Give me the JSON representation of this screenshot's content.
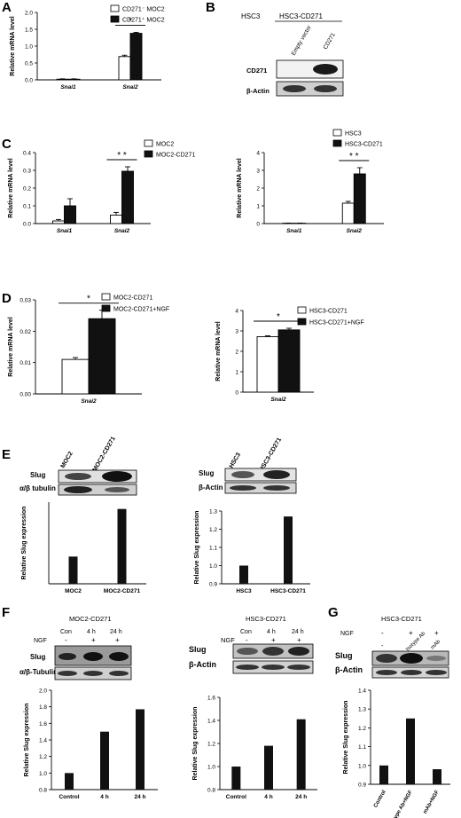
{
  "panels": {
    "A": {
      "letter": "A",
      "chart_data": {
        "type": "bar",
        "ylabel": "Relative mRNA level",
        "ylim": [
          0,
          2.0
        ],
        "yticks": [
          0,
          0.5,
          1.0,
          1.5,
          2.0
        ],
        "categories": [
          "Snai1",
          "Snai2"
        ],
        "series": [
          {
            "name": "CD271⁻ MOC2",
            "color": "#ffffff",
            "values": [
              0.02,
              0.69
            ]
          },
          {
            "name": "CD271⁺ MOC2",
            "color": "#111111",
            "values": [
              0.02,
              1.38
            ]
          }
        ],
        "errors": [
          [
            0.01,
            0.04
          ],
          [
            0.01,
            0.03
          ]
        ],
        "significance": "*"
      }
    },
    "B": {
      "letter": "B",
      "cell_lines": [
        "HSC3",
        "HSC3-CD271"
      ],
      "lanes": [
        "Empty vector",
        "CD271"
      ],
      "rows": [
        "CD271",
        "β-Actin"
      ]
    },
    "C1": {
      "letter": "C",
      "chart_data": {
        "type": "bar",
        "ylabel": "Relative mRNA level",
        "ylim": [
          0,
          0.4
        ],
        "yticks": [
          0.0,
          0.1,
          0.2,
          0.3,
          0.4
        ],
        "categories": [
          "Snai1",
          "Snai2"
        ],
        "series": [
          {
            "name": "MOC2",
            "color": "#ffffff",
            "values": [
              0.015,
              0.048
            ]
          },
          {
            "name": "MOC2-CD271",
            "color": "#111111",
            "values": [
              0.1,
              0.295
            ]
          }
        ],
        "errors": [
          [
            0.008,
            0.015
          ],
          [
            0.04,
            0.025
          ]
        ],
        "significance": "* *"
      }
    },
    "C2": {
      "chart_data": {
        "type": "bar",
        "ylabel": "Relative mRNA level",
        "ylim": [
          0,
          4
        ],
        "yticks": [
          0,
          1,
          2,
          3,
          4
        ],
        "categories": [
          "Snai1",
          "Snai2"
        ],
        "series": [
          {
            "name": "HSC3",
            "color": "#ffffff",
            "values": [
              0.02,
              1.15
            ]
          },
          {
            "name": "HSC3-CD271",
            "color": "#111111",
            "values": [
              0.02,
              2.8
            ]
          }
        ],
        "errors": [
          [
            0.01,
            0.1
          ],
          [
            0.01,
            0.35
          ]
        ],
        "significance": "* *"
      }
    },
    "D1": {
      "letter": "D",
      "chart_data": {
        "type": "bar",
        "ylabel": "Relative mRNA level",
        "ylim": [
          0,
          0.03
        ],
        "yticks": [
          0.0,
          0.01,
          0.02,
          0.03
        ],
        "categories": [
          "Snai2"
        ],
        "series": [
          {
            "name": "MOC2-CD271",
            "color": "#ffffff",
            "values": [
              0.011
            ]
          },
          {
            "name": "MOC2-CD271+NGF",
            "color": "#111111",
            "values": [
              0.024
            ]
          }
        ],
        "errors": [
          [
            0.0006
          ],
          [
            0.0027
          ]
        ],
        "significance": "*"
      }
    },
    "D2": {
      "chart_data": {
        "type": "bar",
        "ylabel": "Relative mRNA level",
        "ylim": [
          0,
          4
        ],
        "yticks": [
          0,
          1,
          2,
          3,
          4
        ],
        "categories": [
          "Snai2"
        ],
        "series": [
          {
            "name": "HSC3-CD271",
            "color": "#ffffff",
            "values": [
              2.72
            ]
          },
          {
            "name": "HSC3-CD271+NGF",
            "color": "#111111",
            "values": [
              3.05
            ]
          }
        ],
        "errors": [
          [
            0.04
          ],
          [
            0.08
          ]
        ],
        "significance": "*"
      }
    },
    "E1": {
      "letter": "E",
      "lanes": [
        "MOC2",
        "MOC2-CD271"
      ],
      "rows": [
        "Slug",
        "α/β tubulin"
      ],
      "chart_data": {
        "type": "bar",
        "ylabel": "Relative Slug expression",
        "ylim": [
          0,
          3
        ],
        "categories": [
          "MOC2",
          "MOC2-CD271"
        ],
        "values": [
          1.0,
          2.75
        ]
      }
    },
    "E2": {
      "lanes": [
        "HSC3",
        "HSC3-CD271"
      ],
      "rows": [
        "Slug",
        "β-Actin"
      ],
      "chart_data": {
        "type": "bar",
        "ylabel": "Relative Slug expression",
        "ylim": [
          0.9,
          1.3
        ],
        "yticks": [
          0.9,
          1.0,
          1.1,
          1.2,
          1.3
        ],
        "categories": [
          "HSC3",
          "HSC3-CD271"
        ],
        "values": [
          1.0,
          1.27
        ]
      }
    },
    "F1": {
      "letter": "F",
      "title": "MOC2-CD271",
      "lanes": [
        "Con",
        "4 h",
        "24 h"
      ],
      "ngf_label": "NGF",
      "ngf": [
        "-",
        "+",
        "+"
      ],
      "rows": [
        "Slug",
        "α/β-Tubulin"
      ],
      "chart_data": {
        "type": "bar",
        "ylabel": "Relative Slug expression",
        "ylim": [
          0.8,
          2.0
        ],
        "yticks": [
          0.8,
          1.0,
          1.2,
          1.4,
          1.6,
          1.8,
          2.0
        ],
        "categories": [
          "Control",
          "4 h",
          "24 h"
        ],
        "values": [
          1.0,
          1.5,
          1.77
        ]
      }
    },
    "F2": {
      "title": "HSC3-CD271",
      "lanes": [
        "Con",
        "4 h",
        "24 h"
      ],
      "ngf_label": "NGF",
      "ngf": [
        "-",
        "+",
        "+"
      ],
      "rows": [
        "Slug",
        "β-Actin"
      ],
      "chart_data": {
        "type": "bar",
        "ylabel": "Relative Slug expression",
        "ylim": [
          0.8,
          1.6
        ],
        "yticks": [
          0.8,
          1.0,
          1.2,
          1.4,
          1.6
        ],
        "categories": [
          "Control",
          "4 h",
          "24 h"
        ],
        "values": [
          1.0,
          1.18,
          1.41
        ]
      }
    },
    "G": {
      "letter": "G",
      "title": "HSC3-CD271",
      "lanes": [
        "-",
        "Isotype Ab",
        "mAb"
      ],
      "ngf_label": "NGF",
      "ngf": [
        "-",
        "+",
        "+"
      ],
      "rows": [
        "Slug",
        "β-Actin"
      ],
      "chart_data": {
        "type": "bar",
        "ylabel": "Relative Slug expression",
        "ylim": [
          0.9,
          1.4
        ],
        "yticks": [
          0.9,
          1.0,
          1.1,
          1.2,
          1.3,
          1.4
        ],
        "categories": [
          "Control",
          "Isotype Ab+NGF",
          "mAb+NGF"
        ],
        "values": [
          1.0,
          1.25,
          0.98
        ]
      }
    }
  }
}
